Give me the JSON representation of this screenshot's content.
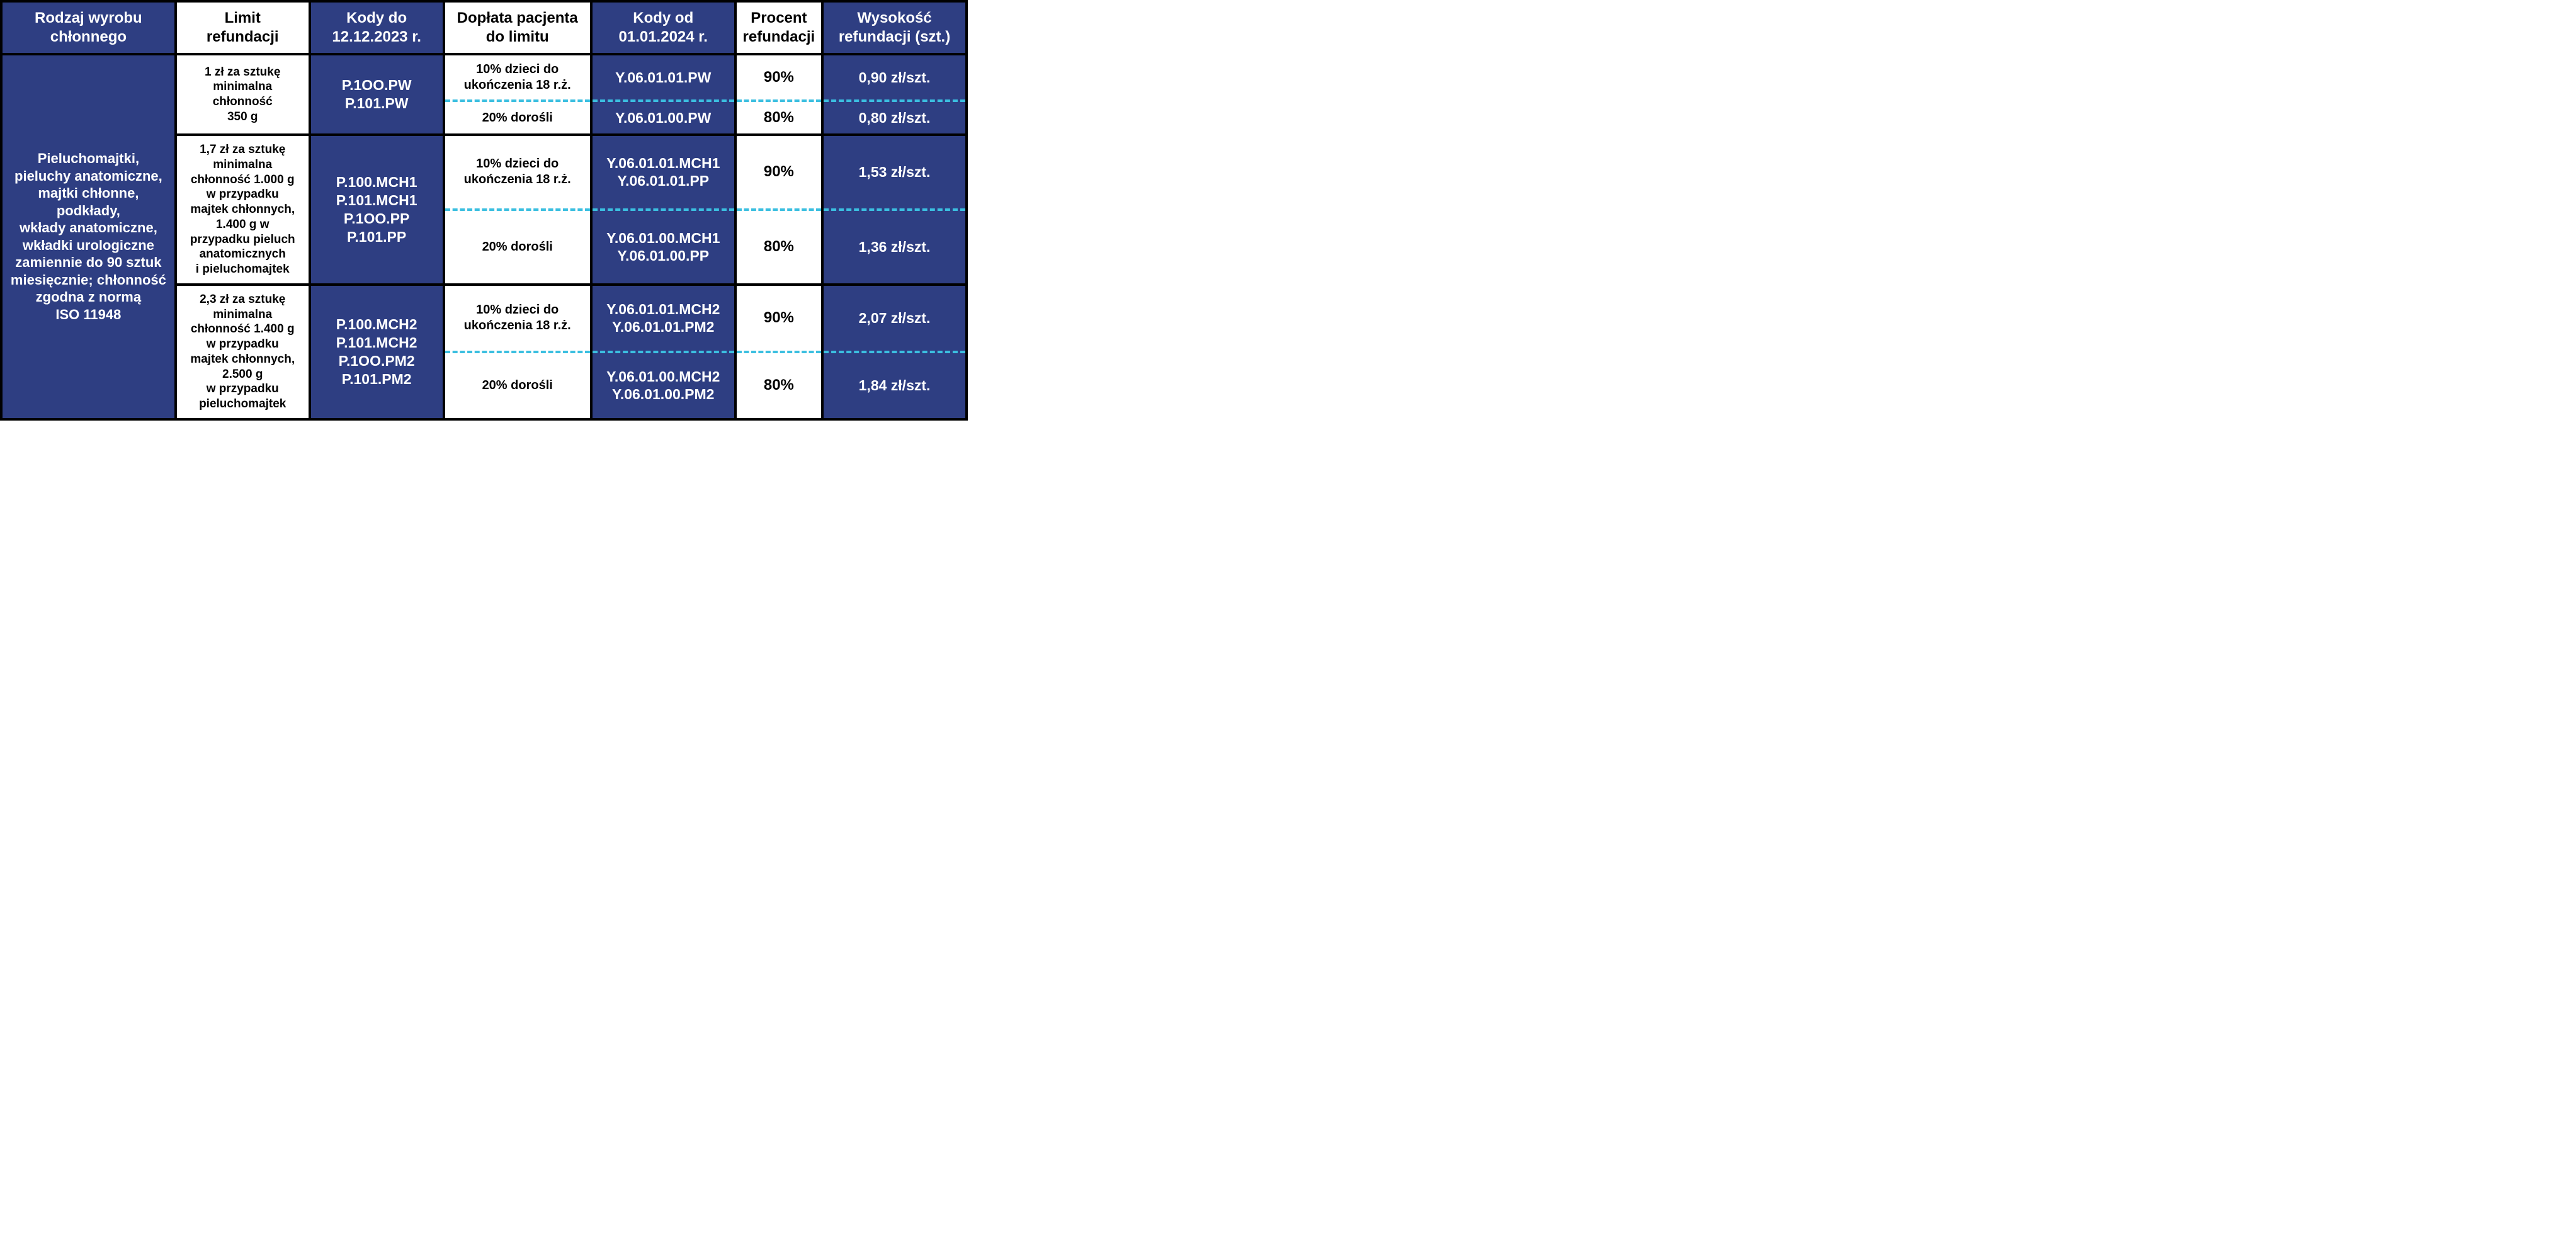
{
  "colors": {
    "blue_bg": "#2e3e82",
    "white_bg": "#ffffff",
    "text_on_blue": "#ffffff",
    "text_on_white": "#000000",
    "border": "#000000",
    "dashed_divider": "#3bbfe0"
  },
  "columns": {
    "type": "Rodzaj wyrobu\nchłonnego",
    "limit": "Limit\nrefundacji",
    "kodydo": "Kody do\n12.12.2023 r.",
    "doplata": "Dopłata pacjenta\ndo limitu",
    "kodyod": "Kody od\n01.01.2024 r.",
    "procent": "Procent\nrefundacji",
    "wysok": "Wysokość\nrefundacji (szt.)"
  },
  "row_label": "Pieluchomajtki,\npieluchy anatomiczne,\nmajtki chłonne,\npodkłady,\nwkłady anatomiczne,\nwkładki urologiczne\nzamiennie do 90 sztuk\nmiesięcznie; chłonność\nzgodna z normą\nISO 11948",
  "groups": [
    {
      "limit": "1 zł za sztukę\nminimalna\nchłonność\n350 g",
      "kody_do": "P.1OO.PW\nP.101.PW",
      "rows": [
        {
          "doplata": "10% dzieci do\nukończenia 18 r.ż.",
          "kody_od": "Y.06.01.01.PW",
          "procent": "90%",
          "wysok": "0,90 zł/szt."
        },
        {
          "doplata": "20% dorośli",
          "kody_od": "Y.06.01.00.PW",
          "procent": "80%",
          "wysok": "0,80 zł/szt."
        }
      ]
    },
    {
      "limit": "1,7 zł za sztukę\nminimalna\nchłonność 1.000 g\nw przypadku\nmajtek chłonnych,\n1.400 g w\nprzypadku pieluch\nanatomicznych\ni pieluchomajtek",
      "kody_do": "P.100.MCH1\nP.101.MCH1\nP.1OO.PP\nP.101.PP",
      "rows": [
        {
          "doplata": "10% dzieci do\nukończenia 18 r.ż.",
          "kody_od": "Y.06.01.01.MCH1\nY.06.01.01.PP",
          "procent": "90%",
          "wysok": "1,53 zł/szt."
        },
        {
          "doplata": "20% dorośli",
          "kody_od": "Y.06.01.00.MCH1\nY.06.01.00.PP",
          "procent": "80%",
          "wysok": "1,36 zł/szt."
        }
      ]
    },
    {
      "limit": "2,3 zł za sztukę\nminimalna\nchłonność 1.400 g\nw przypadku\nmajtek chłonnych,\n2.500 g\nw przypadku\npieluchomajtek",
      "kody_do": "P.100.MCH2\nP.101.MCH2\nP.1OO.PM2\nP.101.PM2",
      "rows": [
        {
          "doplata": "10% dzieci do\nukończenia 18 r.ż.",
          "kody_od": "Y.06.01.01.MCH2\nY.06.01.01.PM2",
          "procent": "90%",
          "wysok": "2,07 zł/szt."
        },
        {
          "doplata": "20% dorośli",
          "kody_od": "Y.06.01.00.MCH2\nY.06.01.00.PM2",
          "procent": "80%",
          "wysok": "1,84 zł/szt."
        }
      ]
    }
  ]
}
